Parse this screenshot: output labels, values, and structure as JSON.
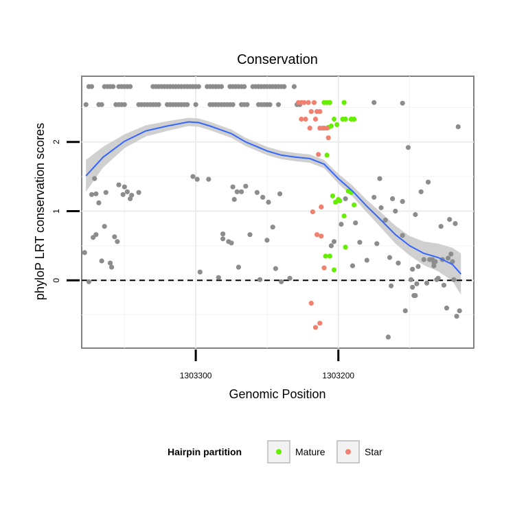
{
  "chart_data": {
    "type": "scatter",
    "title": "Conservation",
    "xlabel": "Genomic Position",
    "ylabel": "phyloP LRT conservation scores",
    "x_axis_reversed": true,
    "xlim": [
      1303380,
      1303105
    ],
    "ylim": [
      -0.98,
      2.95
    ],
    "x_ticks": [
      {
        "value": 1303300,
        "label": "1303300"
      },
      {
        "value": 1303200,
        "label": "1303200"
      }
    ],
    "y_ticks": [
      {
        "value": 0,
        "label": "0"
      },
      {
        "value": 1,
        "label": "1"
      },
      {
        "value": 2,
        "label": "2"
      }
    ],
    "reference_line": {
      "y": 0,
      "style": "dashed"
    },
    "legend": {
      "title": "Hairpin partition",
      "position": "bottom",
      "entries": [
        {
          "name": "Mature",
          "color": "#66ee00"
        },
        {
          "name": "Star",
          "color": "#f08070"
        }
      ]
    },
    "colors": {
      "Other": "#8c8c8c",
      "Mature": "#66ee00",
      "Star": "#f08070",
      "smooth": "#3366ff",
      "ribbon": "#c8c8c8"
    },
    "series": [
      {
        "name": "Other",
        "points": [
          [
            1303375,
            2.8
          ],
          [
            1303373,
            2.8
          ],
          [
            1303364,
            2.8
          ],
          [
            1303362,
            2.8
          ],
          [
            1303360,
            2.8
          ],
          [
            1303358,
            2.8
          ],
          [
            1303354,
            2.8
          ],
          [
            1303352,
            2.8
          ],
          [
            1303350,
            2.8
          ],
          [
            1303348,
            2.8
          ],
          [
            1303346,
            2.8
          ],
          [
            1303330,
            2.8
          ],
          [
            1303328,
            2.8
          ],
          [
            1303326,
            2.8
          ],
          [
            1303324,
            2.8
          ],
          [
            1303322,
            2.8
          ],
          [
            1303320,
            2.8
          ],
          [
            1303318,
            2.8
          ],
          [
            1303316,
            2.8
          ],
          [
            1303314,
            2.8
          ],
          [
            1303312,
            2.8
          ],
          [
            1303310,
            2.8
          ],
          [
            1303308,
            2.8
          ],
          [
            1303306,
            2.8
          ],
          [
            1303304,
            2.8
          ],
          [
            1303302,
            2.8
          ],
          [
            1303300,
            2.8
          ],
          [
            1303298,
            2.8
          ],
          [
            1303292,
            2.8
          ],
          [
            1303290,
            2.8
          ],
          [
            1303288,
            2.8
          ],
          [
            1303286,
            2.8
          ],
          [
            1303284,
            2.8
          ],
          [
            1303282,
            2.8
          ],
          [
            1303276,
            2.8
          ],
          [
            1303274,
            2.8
          ],
          [
            1303272,
            2.8
          ],
          [
            1303270,
            2.8
          ],
          [
            1303268,
            2.8
          ],
          [
            1303266,
            2.8
          ],
          [
            1303260,
            2.8
          ],
          [
            1303258,
            2.8
          ],
          [
            1303256,
            2.8
          ],
          [
            1303254,
            2.8
          ],
          [
            1303252,
            2.8
          ],
          [
            1303250,
            2.8
          ],
          [
            1303248,
            2.8
          ],
          [
            1303246,
            2.8
          ],
          [
            1303244,
            2.8
          ],
          [
            1303242,
            2.8
          ],
          [
            1303240,
            2.8
          ],
          [
            1303238,
            2.8
          ],
          [
            1303231,
            2.8
          ],
          [
            1303377,
            2.54
          ],
          [
            1303368,
            2.54
          ],
          [
            1303366,
            2.54
          ],
          [
            1303356,
            2.54
          ],
          [
            1303354,
            2.54
          ],
          [
            1303352,
            2.54
          ],
          [
            1303350,
            2.54
          ],
          [
            1303340,
            2.54
          ],
          [
            1303338,
            2.54
          ],
          [
            1303336,
            2.54
          ],
          [
            1303334,
            2.54
          ],
          [
            1303332,
            2.54
          ],
          [
            1303330,
            2.54
          ],
          [
            1303328,
            2.54
          ],
          [
            1303326,
            2.54
          ],
          [
            1303320,
            2.54
          ],
          [
            1303318,
            2.54
          ],
          [
            1303316,
            2.54
          ],
          [
            1303314,
            2.54
          ],
          [
            1303312,
            2.54
          ],
          [
            1303310,
            2.54
          ],
          [
            1303308,
            2.54
          ],
          [
            1303306,
            2.54
          ],
          [
            1303300,
            2.54
          ],
          [
            1303290,
            2.54
          ],
          [
            1303288,
            2.54
          ],
          [
            1303286,
            2.54
          ],
          [
            1303284,
            2.54
          ],
          [
            1303282,
            2.54
          ],
          [
            1303280,
            2.54
          ],
          [
            1303278,
            2.54
          ],
          [
            1303276,
            2.54
          ],
          [
            1303274,
            2.54
          ],
          [
            1303268,
            2.54
          ],
          [
            1303266,
            2.54
          ],
          [
            1303264,
            2.54
          ],
          [
            1303256,
            2.54
          ],
          [
            1303254,
            2.54
          ],
          [
            1303252,
            2.54
          ],
          [
            1303250,
            2.54
          ],
          [
            1303248,
            2.54
          ],
          [
            1303242,
            2.54
          ],
          [
            1303229,
            2.54
          ],
          [
            1303227,
            2.54
          ],
          [
            1303175,
            2.57
          ],
          [
            1303375,
            -0.02
          ],
          [
            1303378,
            0.4
          ],
          [
            1303373,
            1.24
          ],
          [
            1303371,
            1.47
          ],
          [
            1303370,
            1.25
          ],
          [
            1303368,
            1.12
          ],
          [
            1303372,
            0.62
          ],
          [
            1303370,
            0.66
          ],
          [
            1303366,
            0.28
          ],
          [
            1303364,
            0.78
          ],
          [
            1303363,
            1.27
          ],
          [
            1303360,
            0.25
          ],
          [
            1303359,
            0.19
          ],
          [
            1303357,
            0.63
          ],
          [
            1303355,
            0.56
          ],
          [
            1303354,
            1.38
          ],
          [
            1303351,
            1.24
          ],
          [
            1303350,
            1.35
          ],
          [
            1303348,
            1.28
          ],
          [
            1303346,
            1.18
          ],
          [
            1303345,
            1.23
          ],
          [
            1303340,
            1.27
          ],
          [
            1303302,
            1.5
          ],
          [
            1303299,
            1.46
          ],
          [
            1303297,
            0.12
          ],
          [
            1303291,
            1.46
          ],
          [
            1303284,
            0.04
          ],
          [
            1303281,
            0.6
          ],
          [
            1303281,
            0.67
          ],
          [
            1303277,
            0.56
          ],
          [
            1303275,
            0.54
          ],
          [
            1303274,
            1.35
          ],
          [
            1303273,
            1.17
          ],
          [
            1303271,
            1.28
          ],
          [
            1303270,
            0.19
          ],
          [
            1303268,
            1.28
          ],
          [
            1303265,
            1.36
          ],
          [
            1303262,
            0.66
          ],
          [
            1303257,
            1.27
          ],
          [
            1303255,
            0.01
          ],
          [
            1303253,
            1.2
          ],
          [
            1303250,
            0.58
          ],
          [
            1303249,
            1.13
          ],
          [
            1303246,
            0.77
          ],
          [
            1303244,
            0.17
          ],
          [
            1303241,
            1.25
          ],
          [
            1303240,
            -0.02
          ],
          [
            1303234,
            0.03
          ],
          [
            1303205,
            0.5
          ],
          [
            1303203,
            0.56
          ],
          [
            1303198,
            0.81
          ],
          [
            1303195,
            1.18
          ],
          [
            1303190,
            0.21
          ],
          [
            1303188,
            0.83
          ],
          [
            1303185,
            0.55
          ],
          [
            1303180,
            0.29
          ],
          [
            1303175,
            1.2
          ],
          [
            1303173,
            0.53
          ],
          [
            1303171,
            1.47
          ],
          [
            1303170,
            1.05
          ],
          [
            1303167,
            0.87
          ],
          [
            1303164,
            0.33
          ],
          [
            1303162,
            1.18
          ],
          [
            1303160,
            1.0
          ],
          [
            1303158,
            0.25
          ],
          [
            1303155,
            1.14
          ],
          [
            1303151,
            1.92
          ],
          [
            1303148,
            0.16
          ],
          [
            1303146,
            0.95
          ],
          [
            1303144,
            0.2
          ],
          [
            1303142,
            1.28
          ],
          [
            1303140,
            0.3
          ],
          [
            1303138,
            -0.04
          ],
          [
            1303137,
            1.42
          ],
          [
            1303155,
            0.65
          ],
          [
            1303153,
            -0.44
          ],
          [
            1303149,
            0.01
          ],
          [
            1303148,
            -0.1
          ],
          [
            1303147,
            -0.22
          ],
          [
            1303146,
            -0.22
          ],
          [
            1303145,
            -0.05
          ],
          [
            1303136,
            0.3
          ],
          [
            1303134,
            0.3
          ],
          [
            1303133,
            0.26
          ],
          [
            1303132,
            0.27
          ],
          [
            1303131,
            0.01
          ],
          [
            1303130,
            0.03
          ],
          [
            1303128,
            0.78
          ],
          [
            1303127,
            0.3
          ],
          [
            1303126,
            -0.07
          ],
          [
            1303124,
            -0.4
          ],
          [
            1303123,
            0.32
          ],
          [
            1303122,
            0.88
          ],
          [
            1303121,
            0.38
          ],
          [
            1303120,
            0.27
          ],
          [
            1303119,
            0.01
          ],
          [
            1303118,
            0.82
          ],
          [
            1303117,
            -0.52
          ],
          [
            1303116,
            2.22
          ],
          [
            1303115,
            -0.44
          ],
          [
            1303155,
            2.56
          ],
          [
            1303165,
            -0.82
          ],
          [
            1303163,
            -0.08
          ],
          [
            1303133,
            0.21
          ]
        ]
      },
      {
        "name": "Mature",
        "points": [
          [
            1303210,
            2.57
          ],
          [
            1303208,
            2.57
          ],
          [
            1303206,
            2.57
          ],
          [
            1303196,
            2.57
          ],
          [
            1303203,
            2.33
          ],
          [
            1303197,
            2.33
          ],
          [
            1303195,
            2.33
          ],
          [
            1303191,
            2.33
          ],
          [
            1303189,
            2.33
          ],
          [
            1303207,
            2.21
          ],
          [
            1303205,
            2.23
          ],
          [
            1303201,
            2.25
          ],
          [
            1303208,
            1.81
          ],
          [
            1303204,
            1.22
          ],
          [
            1303202,
            1.13
          ],
          [
            1303200,
            1.17
          ],
          [
            1303199,
            1.15
          ],
          [
            1303196,
            0.93
          ],
          [
            1303195,
            0.48
          ],
          [
            1303193,
            1.29
          ],
          [
            1303191,
            1.27
          ],
          [
            1303189,
            1.09
          ],
          [
            1303209,
            0.35
          ],
          [
            1303206,
            0.35
          ],
          [
            1303203,
            0.15
          ]
        ]
      },
      {
        "name": "Star",
        "points": [
          [
            1303228,
            2.57
          ],
          [
            1303226,
            2.57
          ],
          [
            1303224,
            2.57
          ],
          [
            1303221,
            2.57
          ],
          [
            1303217,
            2.57
          ],
          [
            1303213,
            2.44
          ],
          [
            1303219,
            2.44
          ],
          [
            1303215,
            2.44
          ],
          [
            1303226,
            2.33
          ],
          [
            1303223,
            2.33
          ],
          [
            1303220,
            2.2
          ],
          [
            1303216,
            2.33
          ],
          [
            1303210,
            2.2
          ],
          [
            1303213,
            2.2
          ],
          [
            1303211,
            2.2
          ],
          [
            1303208,
            2.2
          ],
          [
            1303207,
            2.06
          ],
          [
            1303214,
            1.82
          ],
          [
            1303212,
            1.06
          ],
          [
            1303218,
            0.99
          ],
          [
            1303215,
            0.66
          ],
          [
            1303212,
            0.64
          ],
          [
            1303210,
            0.18
          ],
          [
            1303213,
            -0.62
          ],
          [
            1303219,
            -0.33
          ],
          [
            1303216,
            -0.68
          ]
        ]
      }
    ],
    "smooth_line": {
      "method": "loess",
      "x": [
        1303377,
        1303365,
        1303350,
        1303335,
        1303320,
        1303305,
        1303298,
        1303290,
        1303275,
        1303265,
        1303250,
        1303240,
        1303230,
        1303220,
        1303210,
        1303200,
        1303190,
        1303180,
        1303170,
        1303160,
        1303150,
        1303140,
        1303130,
        1303120,
        1303114
      ],
      "y": [
        1.51,
        1.78,
        2.01,
        2.16,
        2.23,
        2.29,
        2.28,
        2.23,
        2.12,
        2.0,
        1.87,
        1.81,
        1.78,
        1.76,
        1.68,
        1.47,
        1.29,
        1.07,
        0.87,
        0.66,
        0.5,
        0.39,
        0.33,
        0.23,
        0.09
      ],
      "ribbon_half_width": [
        0.23,
        0.15,
        0.1,
        0.08,
        0.07,
        0.06,
        0.06,
        0.06,
        0.06,
        0.06,
        0.06,
        0.06,
        0.06,
        0.06,
        0.06,
        0.07,
        0.08,
        0.09,
        0.11,
        0.13,
        0.14,
        0.17,
        0.2,
        0.24,
        0.3
      ]
    }
  }
}
